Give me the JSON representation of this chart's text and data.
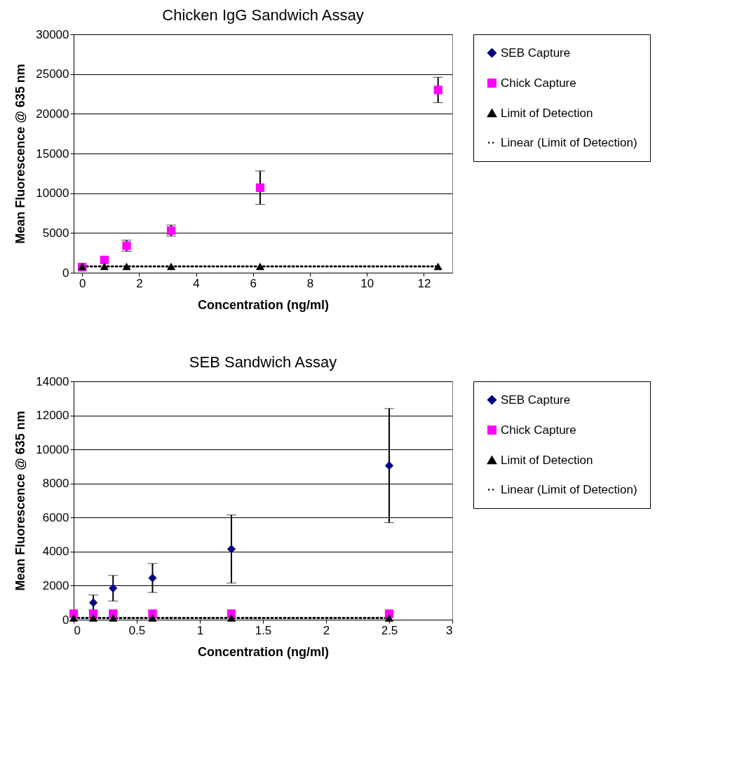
{
  "chart_data": [
    {
      "type": "scatter",
      "title": "Chicken IgG  Sandwich Assay",
      "xlabel": "Concentration (ng/ml)",
      "ylabel": "Mean Fluorescence @ 635 nm",
      "x": [
        0,
        0.78,
        1.56,
        3.125,
        6.25,
        12.5
      ],
      "xlim": [
        -0.3,
        13
      ],
      "xticks": [
        0,
        2,
        4,
        6,
        8,
        10,
        12
      ],
      "ylim": [
        0,
        30000
      ],
      "yticks": [
        0,
        5000,
        10000,
        15000,
        20000,
        25000,
        30000
      ],
      "grid": "y",
      "legend": "right",
      "series": [
        {
          "name": "SEB Capture",
          "color": "#000080",
          "marker": "diamond",
          "values": [
            null,
            null,
            null,
            null,
            null,
            null
          ]
        },
        {
          "name": "Chick Capture",
          "color": "#ff00ff",
          "marker": "square",
          "values": [
            700,
            1600,
            3400,
            5300,
            10700,
            23000
          ],
          "errors": [
            null,
            null,
            700,
            700,
            2100,
            1600
          ]
        },
        {
          "name": "Limit of Detection",
          "color": "#000000",
          "marker": "triangle",
          "values": [
            800,
            800,
            800,
            800,
            800,
            800
          ]
        },
        {
          "name": "Linear (Limit of Detection)",
          "type": "line",
          "color": "#000000",
          "marker": "none",
          "line_style": "dotted",
          "x": [
            0,
            12.5
          ],
          "values": [
            800,
            800
          ]
        }
      ]
    },
    {
      "type": "scatter",
      "title": "SEB Sandwich Assay",
      "xlabel": "Concentration (ng/ml)",
      "ylabel": "Mean Fluorescence @ 635 nm",
      "x": [
        0,
        0.156,
        0.3125,
        0.625,
        1.25,
        2.5
      ],
      "xlim": [
        0,
        3
      ],
      "xticks": [
        0,
        0.5,
        1,
        1.5,
        2,
        2.5,
        3
      ],
      "ylim": [
        0,
        14000
      ],
      "yticks": [
        0,
        2000,
        4000,
        6000,
        8000,
        10000,
        12000,
        14000
      ],
      "grid": "y",
      "legend": "right",
      "series": [
        {
          "name": "SEB Capture",
          "color": "#000080",
          "marker": "diamond",
          "values": [
            null,
            1000,
            1850,
            2450,
            4150,
            9050
          ],
          "errors": [
            null,
            450,
            750,
            850,
            2000,
            3350
          ]
        },
        {
          "name": "Chick Capture",
          "color": "#ff00ff",
          "marker": "square",
          "values": [
            350,
            350,
            350,
            350,
            350,
            350
          ]
        },
        {
          "name": "Limit of Detection",
          "color": "#000000",
          "marker": "triangle",
          "values": [
            100,
            100,
            100,
            100,
            100,
            100
          ]
        },
        {
          "name": "Linear (Limit of Detection)",
          "type": "line",
          "color": "#000000",
          "marker": "none",
          "line_style": "dotted",
          "x": [
            0,
            2.5
          ],
          "values": [
            100,
            100
          ]
        }
      ]
    }
  ]
}
